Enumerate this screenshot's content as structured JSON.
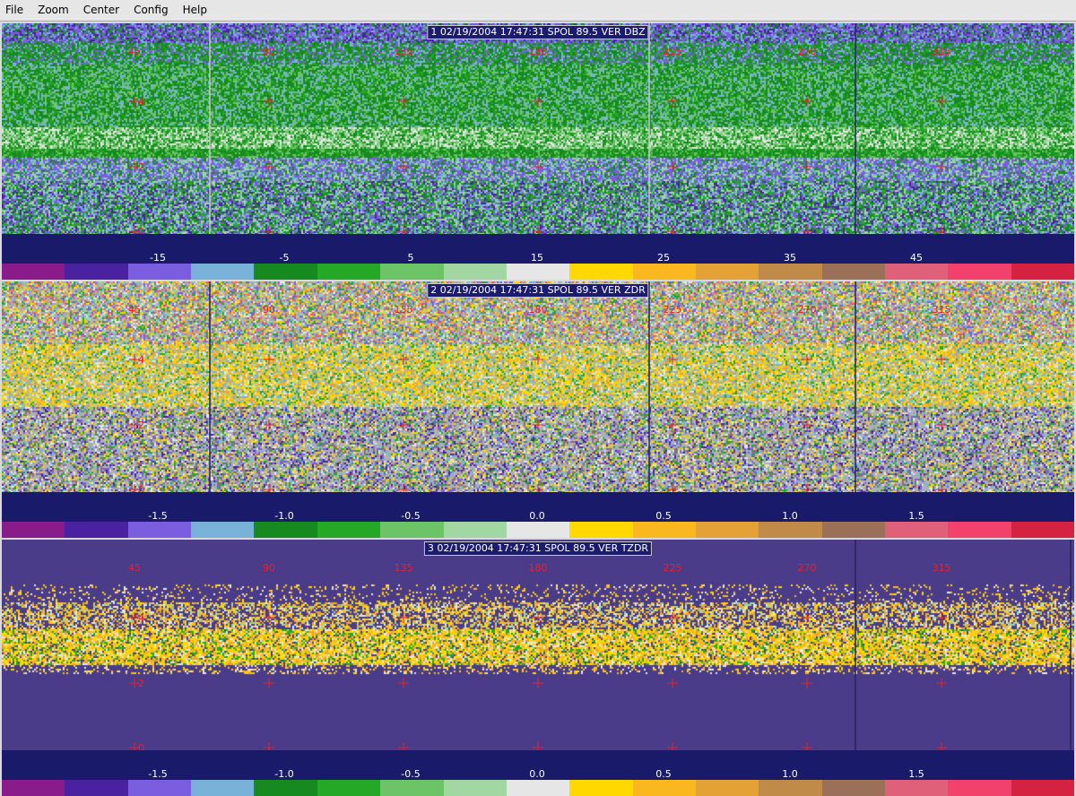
{
  "menu": [
    "File",
    "Zoom",
    "Center",
    "Config",
    "Help"
  ],
  "panels": [
    {
      "title": "1 02/19/2004 17:47:31 SPOL 89.5 VER DBZ",
      "field": "DBZ",
      "azimuth_labels": [
        "45",
        "90",
        "135",
        "180",
        "225",
        "270",
        "315"
      ],
      "height_labels": [
        "4",
        "2",
        "0"
      ],
      "colorbar_labels": [
        "-15",
        "-5",
        "5",
        "15",
        "25",
        "35",
        "45"
      ],
      "colors": [
        "#8a1b8a",
        "#4a22a0",
        "#7b5ee0",
        "#78b2d8",
        "#168a1e",
        "#24a826",
        "#6cc466",
        "#a2d6a2",
        "#e6e6e6",
        "#ffd800",
        "#fab81e",
        "#e4a236",
        "#c08a48",
        "#9a7058",
        "#e06079",
        "#f2426c",
        "#d42240"
      ],
      "background": "#4b3c8a"
    },
    {
      "title": "2 02/19/2004 17:47:31 SPOL 89.5 VER ZDR",
      "field": "ZDR",
      "azimuth_labels": [
        "45",
        "90",
        "135",
        "180",
        "225",
        "270",
        "315"
      ],
      "height_labels": [
        "4",
        "2",
        "0"
      ],
      "colorbar_labels": [
        "-1.5",
        "-1.0",
        "-0.5",
        "0.0",
        "0.5",
        "1.0",
        "1.5"
      ],
      "colors": [
        "#8a1b8a",
        "#4a22a0",
        "#7b5ee0",
        "#78b2d8",
        "#168a1e",
        "#24a826",
        "#6cc466",
        "#a2d6a2",
        "#e6e6e6",
        "#ffd800",
        "#fab81e",
        "#e4a236",
        "#c08a48",
        "#9a7058",
        "#e06079",
        "#f2426c",
        "#d42240"
      ],
      "background": "#b0b0b0"
    },
    {
      "title": "3 02/19/2004 17:47:31 SPOL 89.5 VER TZDR",
      "field": "TZDR",
      "azimuth_labels": [
        "45",
        "90",
        "135",
        "180",
        "225",
        "270",
        "315"
      ],
      "height_labels": [
        "4",
        "2",
        "0"
      ],
      "colorbar_labels": [
        "-1.5",
        "-1.0",
        "-0.5",
        "0.0",
        "0.5",
        "1.0",
        "1.5"
      ],
      "colors": [
        "#8a1b8a",
        "#4a22a0",
        "#7b5ee0",
        "#78b2d8",
        "#168a1e",
        "#24a826",
        "#6cc466",
        "#a2d6a2",
        "#e6e6e6",
        "#ffd800",
        "#fab81e",
        "#e4a236",
        "#c08a48",
        "#9a7058",
        "#e06079",
        "#f2426c",
        "#d42240"
      ],
      "background": "#4b3c8a"
    }
  ],
  "accent": "#e8202a"
}
